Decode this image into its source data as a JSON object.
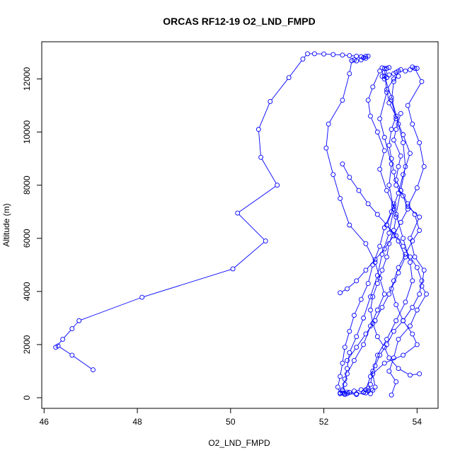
{
  "chart_data": {
    "type": "scatter",
    "title": "ORCAS RF12-19 O2_LND_FMPD",
    "xlabel": "O2_LND_FMPD",
    "ylabel": "Altitude (m)",
    "xlim": [
      45.95,
      54.45
    ],
    "ylim": [
      -400,
      13400
    ],
    "xticks": [
      46,
      48,
      50,
      52,
      54
    ],
    "yticks": [
      0,
      2000,
      4000,
      6000,
      8000,
      10000,
      12000
    ],
    "grid": false,
    "legend": "none",
    "series": [
      {
        "style": "points-and-lines",
        "points": [
          [
            47.05,
            1050
          ],
          [
            46.6,
            1600
          ],
          [
            46.3,
            1950
          ],
          [
            46.25,
            1900
          ],
          [
            46.4,
            2200
          ],
          [
            46.6,
            2600
          ],
          [
            46.75,
            2900
          ],
          [
            48.1,
            3780
          ],
          [
            50.05,
            4850
          ],
          [
            50.75,
            5900
          ],
          [
            50.15,
            6950
          ],
          [
            51.0,
            8000
          ],
          [
            50.65,
            9050
          ],
          [
            50.6,
            10100
          ],
          [
            50.85,
            11150
          ],
          [
            51.25,
            12050
          ],
          [
            51.55,
            12750
          ],
          [
            51.65,
            12950
          ],
          [
            51.8,
            12950
          ],
          [
            52.0,
            12940
          ],
          [
            52.2,
            12920
          ],
          [
            52.4,
            12900
          ],
          [
            52.55,
            12880
          ],
          [
            52.7,
            12860
          ],
          [
            52.8,
            12840
          ],
          [
            52.85,
            12800
          ],
          [
            52.9,
            12850
          ],
          [
            52.95,
            12860
          ],
          [
            52.9,
            12780
          ],
          [
            52.8,
            12720
          ],
          [
            52.7,
            12680
          ],
          [
            52.65,
            12720
          ],
          [
            52.6,
            12690
          ]
        ]
      },
      {
        "style": "points-and-lines",
        "points": [
          [
            52.6,
            12690
          ],
          [
            52.55,
            12200
          ],
          [
            52.4,
            11200
          ],
          [
            52.1,
            10300
          ],
          [
            52.05,
            9400
          ],
          [
            52.2,
            8400
          ],
          [
            52.35,
            7500
          ],
          [
            52.55,
            6500
          ],
          [
            52.9,
            5800
          ],
          [
            53.1,
            5100
          ],
          [
            53.2,
            4500
          ],
          [
            53.3,
            3900
          ],
          [
            53.15,
            3300
          ],
          [
            53.0,
            2700
          ],
          [
            52.85,
            2000
          ],
          [
            52.65,
            1400
          ],
          [
            52.5,
            900
          ],
          [
            52.45,
            500
          ],
          [
            52.4,
            250
          ],
          [
            52.5,
            150
          ],
          [
            52.7,
            120
          ],
          [
            52.85,
            200
          ]
        ]
      },
      {
        "style": "points-and-lines",
        "points": [
          [
            53.3,
            12400
          ],
          [
            53.35,
            11500
          ],
          [
            53.2,
            10500
          ],
          [
            53.3,
            9800
          ],
          [
            53.45,
            8800
          ],
          [
            53.4,
            8000
          ],
          [
            53.5,
            7100
          ],
          [
            53.4,
            6200
          ],
          [
            53.25,
            5400
          ],
          [
            53.15,
            4600
          ],
          [
            53.0,
            3800
          ],
          [
            52.85,
            3000
          ],
          [
            52.7,
            2300
          ],
          [
            52.55,
            1700
          ],
          [
            52.5,
            1100
          ],
          [
            52.45,
            700
          ],
          [
            52.4,
            300
          ],
          [
            52.35,
            180
          ],
          [
            52.45,
            160
          ]
        ]
      },
      {
        "style": "points-and-lines",
        "points": [
          [
            53.3,
            12100
          ],
          [
            53.45,
            11300
          ],
          [
            53.6,
            10300
          ],
          [
            53.7,
            9600
          ],
          [
            53.75,
            8700
          ],
          [
            53.65,
            7800
          ],
          [
            53.55,
            6900
          ],
          [
            53.7,
            6000
          ],
          [
            53.85,
            5100
          ],
          [
            53.9,
            4400
          ],
          [
            53.75,
            3600
          ],
          [
            53.55,
            2900
          ],
          [
            53.35,
            2200
          ],
          [
            53.15,
            1600
          ],
          [
            53.05,
            1000
          ],
          [
            53.0,
            500
          ],
          [
            52.95,
            250
          ],
          [
            52.85,
            200
          ]
        ]
      },
      {
        "style": "points-and-lines",
        "points": [
          [
            53.95,
            12400
          ],
          [
            54.1,
            11900
          ],
          [
            53.8,
            11000
          ],
          [
            53.9,
            10300
          ],
          [
            54.05,
            9600
          ],
          [
            54.15,
            8700
          ],
          [
            54.0,
            7900
          ],
          [
            53.8,
            7200
          ],
          [
            54.05,
            6800
          ],
          [
            53.85,
            6000
          ],
          [
            53.95,
            5300
          ],
          [
            54.15,
            4800
          ],
          [
            54.1,
            4200
          ],
          [
            54.2,
            3900
          ],
          [
            54.0,
            3300
          ],
          [
            53.85,
            2700
          ],
          [
            53.6,
            2200
          ],
          [
            53.5,
            1500
          ],
          [
            53.4,
            1000
          ],
          [
            53.55,
            600
          ],
          [
            53.45,
            100
          ]
        ]
      },
      {
        "style": "points-and-lines",
        "points": [
          [
            53.6,
            12300
          ],
          [
            53.5,
            11900
          ],
          [
            53.45,
            11200
          ],
          [
            53.55,
            10500
          ],
          [
            53.7,
            9900
          ],
          [
            53.85,
            9200
          ],
          [
            53.7,
            8400
          ],
          [
            53.6,
            7700
          ],
          [
            53.45,
            7000
          ],
          [
            53.3,
            6400
          ],
          [
            53.2,
            5700
          ],
          [
            53.05,
            5000
          ],
          [
            52.95,
            4300
          ],
          [
            52.8,
            3700
          ],
          [
            52.65,
            3100
          ],
          [
            52.55,
            2500
          ],
          [
            52.45,
            1900
          ],
          [
            52.4,
            1300
          ],
          [
            52.35,
            800
          ],
          [
            52.3,
            400
          ],
          [
            52.35,
            150
          ]
        ]
      },
      {
        "style": "points-and-lines",
        "points": [
          [
            53.2,
            12300
          ],
          [
            53.05,
            11700
          ],
          [
            52.95,
            11200
          ],
          [
            53.0,
            10600
          ],
          [
            53.15,
            10000
          ],
          [
            53.3,
            9300
          ],
          [
            53.2,
            8600
          ],
          [
            53.35,
            7800
          ],
          [
            53.5,
            7200
          ],
          [
            53.35,
            6500
          ],
          [
            53.6,
            5900
          ],
          [
            53.75,
            5300
          ],
          [
            53.6,
            4700
          ],
          [
            53.45,
            4100
          ],
          [
            53.55,
            3500
          ],
          [
            53.7,
            2900
          ],
          [
            53.9,
            2400
          ],
          [
            54.0,
            2000
          ],
          [
            53.7,
            1600
          ],
          [
            53.3,
            1300
          ],
          [
            53.05,
            900
          ],
          [
            53.1,
            400
          ],
          [
            53.0,
            150
          ]
        ]
      },
      {
        "style": "points-and-lines",
        "points": [
          [
            52.35,
            3950
          ],
          [
            52.5,
            4100
          ],
          [
            52.7,
            4400
          ],
          [
            52.9,
            4800
          ],
          [
            53.1,
            5200
          ],
          [
            53.3,
            5600
          ],
          [
            53.5,
            6100
          ],
          [
            53.65,
            6600
          ],
          [
            53.8,
            7100
          ],
          [
            53.7,
            7600
          ],
          [
            53.55,
            8000
          ],
          [
            53.5,
            8500
          ],
          [
            53.45,
            9000
          ],
          [
            53.4,
            9500
          ],
          [
            53.45,
            10100
          ],
          [
            53.55,
            10600
          ],
          [
            53.4,
            11100
          ],
          [
            53.35,
            11600
          ],
          [
            53.5,
            12000
          ],
          [
            53.6,
            12100
          ]
        ]
      },
      {
        "style": "points-and-lines",
        "points": [
          [
            52.5,
            1400
          ],
          [
            52.7,
            1900
          ],
          [
            52.9,
            2400
          ],
          [
            53.1,
            2900
          ],
          [
            53.25,
            3400
          ],
          [
            53.4,
            3900
          ],
          [
            53.5,
            4400
          ],
          [
            53.6,
            4900
          ],
          [
            53.75,
            5400
          ],
          [
            53.9,
            5900
          ],
          [
            54.05,
            6300
          ],
          [
            53.95,
            6900
          ],
          [
            53.8,
            7300
          ],
          [
            53.65,
            7800
          ],
          [
            53.55,
            8200
          ],
          [
            53.6,
            8700
          ],
          [
            53.65,
            9100
          ],
          [
            53.5,
            9700
          ],
          [
            53.55,
            10100
          ],
          [
            53.65,
            10700
          ]
        ]
      },
      {
        "style": "points-and-lines",
        "points": [
          [
            54.05,
            900
          ],
          [
            53.85,
            850
          ],
          [
            53.6,
            1100
          ],
          [
            53.4,
            1500
          ],
          [
            53.3,
            1900
          ],
          [
            53.15,
            2300
          ],
          [
            53.05,
            2800
          ],
          [
            53.0,
            3300
          ],
          [
            53.05,
            3800
          ],
          [
            53.15,
            4300
          ],
          [
            53.25,
            4800
          ],
          [
            53.35,
            5300
          ],
          [
            53.4,
            5800
          ],
          [
            53.5,
            6300
          ],
          [
            53.55,
            6800
          ],
          [
            53.5,
            7300
          ]
        ]
      },
      {
        "style": "points-and-lines",
        "points": [
          [
            52.4,
            8800
          ],
          [
            52.55,
            8300
          ],
          [
            52.75,
            7800
          ],
          [
            52.95,
            7300
          ],
          [
            53.15,
            6900
          ],
          [
            53.35,
            6500
          ],
          [
            53.55,
            6100
          ],
          [
            53.7,
            5700
          ],
          [
            53.85,
            5300
          ],
          [
            54.0,
            4900
          ],
          [
            54.1,
            4400
          ],
          [
            54.05,
            3900
          ],
          [
            53.9,
            3400
          ],
          [
            53.7,
            2900
          ],
          [
            53.5,
            2500
          ],
          [
            53.35,
            2000
          ],
          [
            53.2,
            1600
          ],
          [
            53.1,
            1200
          ],
          [
            53.0,
            800
          ],
          [
            52.9,
            300
          ]
        ]
      },
      {
        "style": "points-and-lines",
        "points": [
          [
            53.9,
            12450
          ],
          [
            54.0,
            12400
          ],
          [
            53.85,
            12350
          ],
          [
            53.75,
            12300
          ],
          [
            53.65,
            12350
          ],
          [
            53.55,
            12250
          ],
          [
            53.5,
            12200
          ],
          [
            53.4,
            12150
          ],
          [
            53.35,
            12050
          ],
          [
            53.3,
            12000
          ],
          [
            53.25,
            12100
          ],
          [
            53.3,
            12250
          ],
          [
            53.35,
            12400
          ],
          [
            53.25,
            12420
          ],
          [
            53.4,
            12430
          ]
        ]
      },
      {
        "style": "points-and-lines",
        "points": [
          [
            52.45,
            120
          ],
          [
            52.55,
            200
          ],
          [
            52.65,
            250
          ],
          [
            52.8,
            300
          ],
          [
            52.95,
            350
          ],
          [
            53.05,
            280
          ],
          [
            52.9,
            180
          ],
          [
            52.7,
            150
          ],
          [
            52.5,
            210
          ],
          [
            52.4,
            180
          ]
        ]
      }
    ]
  }
}
